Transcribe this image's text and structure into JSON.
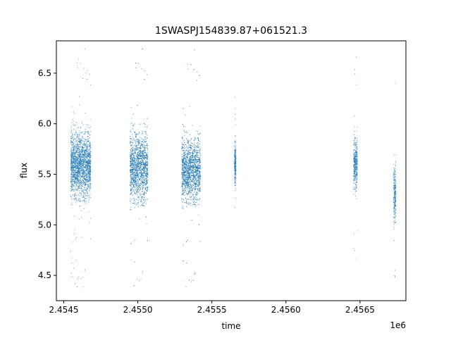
{
  "chart_data": {
    "type": "scatter",
    "title": "1SWASPJ154839.87+061521.3",
    "xlabel": "time",
    "ylabel": "flux",
    "x_offset_label": "1e6",
    "xlim": [
      2454450,
      2456810
    ],
    "ylim": [
      4.25,
      6.82
    ],
    "x_ticks": [
      2454500,
      2455000,
      2455500,
      2456000,
      2456500
    ],
    "x_tick_labels": [
      "2.4545",
      "2.4550",
      "2.4555",
      "2.4560",
      "2.4565"
    ],
    "y_ticks": [
      4.5,
      5.0,
      5.5,
      6.0,
      6.5
    ],
    "y_tick_labels": [
      "4.5",
      "5.0",
      "5.5",
      "6.0",
      "6.5"
    ],
    "grid": false,
    "marker_color": "#1f77b4",
    "clusters": [
      {
        "x_start": 2454545,
        "x_end": 2454680,
        "y_center": 5.6,
        "y_spread": 0.28,
        "y_min": 4.38,
        "y_max": 6.76
      },
      {
        "x_start": 2454945,
        "x_end": 2455065,
        "y_center": 5.58,
        "y_spread": 0.3,
        "y_min": 4.36,
        "y_max": 6.76
      },
      {
        "x_start": 2455295,
        "x_end": 2455420,
        "y_center": 5.55,
        "y_spread": 0.27,
        "y_min": 4.35,
        "y_max": 6.75
      },
      {
        "x_start": 2455650,
        "x_end": 2455660,
        "y_center": 5.6,
        "y_spread": 0.2,
        "y_min": 5.15,
        "y_max": 6.62
      },
      {
        "x_start": 2456455,
        "x_end": 2456480,
        "y_center": 5.62,
        "y_spread": 0.22,
        "y_min": 4.5,
        "y_max": 6.68
      },
      {
        "x_start": 2456725,
        "x_end": 2456740,
        "y_center": 5.3,
        "y_spread": 0.25,
        "y_min": 4.4,
        "y_max": 6.62
      }
    ]
  }
}
